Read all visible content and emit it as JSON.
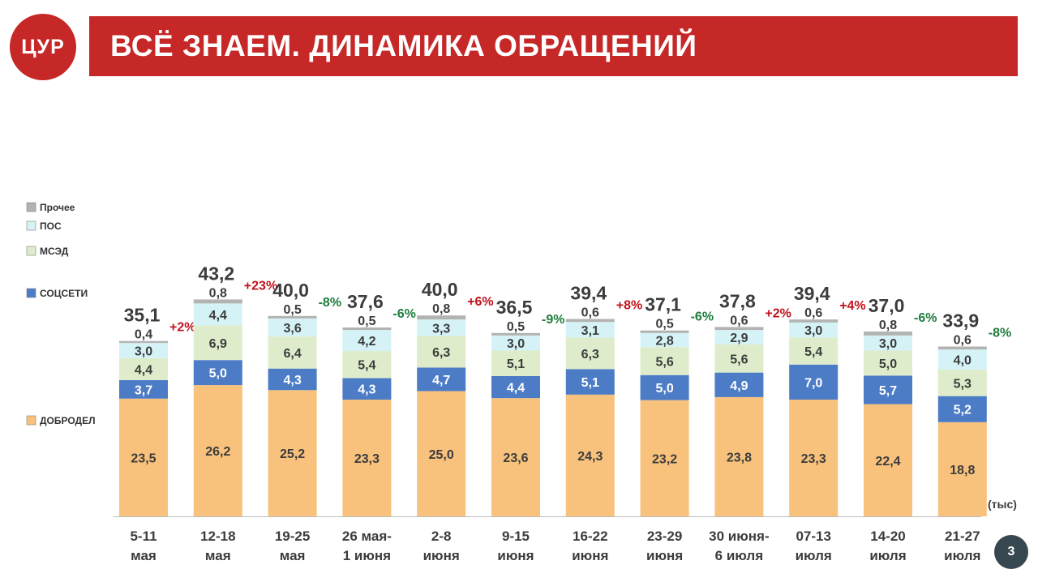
{
  "logo": {
    "text": "ЦУР"
  },
  "header": {
    "title": "ВСЁ ЗНАЕМ. ДИНАМИКА ОБРАЩЕНИЙ"
  },
  "page_number": "3",
  "colors": {
    "header_bg": "#c62828",
    "Добродел": "#f8c27c",
    "Соцсети": "#4d7cc6",
    "МСЭД": "#deeccb",
    "ПОС": "#d5f3f6",
    "Прочее": "#b3b3b3",
    "positive_change": "#c0121b",
    "negative_change": "#1e7d3b"
  },
  "chart_data": {
    "type": "bar",
    "stacked": true,
    "unit_label": "(тыс)",
    "categories": [
      [
        "5-11",
        "мая"
      ],
      [
        "12-18",
        "мая"
      ],
      [
        "19-25",
        "мая"
      ],
      [
        "26 мая-",
        "1 июня"
      ],
      [
        "2-8",
        "июня"
      ],
      [
        "9-15",
        "июня"
      ],
      [
        "16-22",
        "июня"
      ],
      [
        "23-29",
        "июня"
      ],
      [
        "30 июня-",
        "6 июля"
      ],
      [
        "07-13",
        "июля"
      ],
      [
        "14-20",
        "июля"
      ],
      [
        "21-27",
        "июля"
      ]
    ],
    "series": [
      {
        "name": "ДОБРОДЕЛ",
        "color": "#f8c27c",
        "values": [
          "23,5",
          "26,2",
          "25,2",
          "23,3",
          "25,0",
          "23,6",
          "24,3",
          "23,2",
          "23,8",
          "23,3",
          "22,4",
          "18,8"
        ]
      },
      {
        "name": "СОЦСЕТИ",
        "color": "#4d7cc6",
        "values": [
          "3,7",
          "5,0",
          "4,3",
          "4,3",
          "4,7",
          "4,4",
          "5,1",
          "5,0",
          "4,9",
          "7,0",
          "5,7",
          "5,2"
        ]
      },
      {
        "name": "МСЭД",
        "color": "#deeccb",
        "values": [
          "4,4",
          "6,9",
          "6,4",
          "5,4",
          "6,3",
          "5,1",
          "6,3",
          "5,6",
          "5,6",
          "5,4",
          "5,0",
          "5,3"
        ]
      },
      {
        "name": "ПОС",
        "color": "#d5f3f6",
        "values": [
          "3,0",
          "4,4",
          "3,6",
          "4,2",
          "3,3",
          "3,0",
          "3,1",
          "2,8",
          "2,9",
          "3,0",
          "3,0",
          "4,0"
        ]
      },
      {
        "name": "Прочее",
        "color": "#b3b3b3",
        "values": [
          "0,4",
          "0,8",
          "0,5",
          "0,5",
          "0,8",
          "0,5",
          "0,6",
          "0,5",
          "0,6",
          "0,6",
          "0,8",
          "0,6"
        ]
      }
    ],
    "totals": [
      "35,1",
      "43,2",
      "40,0",
      "37,6",
      "40,0",
      "36,5",
      "39,4",
      "37,1",
      "37,8",
      "39,4",
      "37,0",
      "33,9"
    ],
    "changes": [
      "+2%",
      "+23%",
      "-8%",
      "-6%",
      "+6%",
      "-9%",
      "+8%",
      "-6%",
      "+2%",
      "+4%",
      "-6%",
      "-8%"
    ],
    "legend": [
      {
        "name": "Прочее",
        "color": "#b3b3b3"
      },
      {
        "name": "ПОС",
        "color": "#d5f3f6"
      },
      {
        "name": "МСЭД",
        "color": "#deeccb"
      },
      {
        "name": "СОЦСЕТИ",
        "color": "#4d7cc6"
      },
      {
        "name": "ДОБРОДЕЛ",
        "color": "#f8c27c"
      }
    ],
    "legend_placement": "left",
    "grid": false,
    "ylim": [
      0,
      45
    ]
  }
}
